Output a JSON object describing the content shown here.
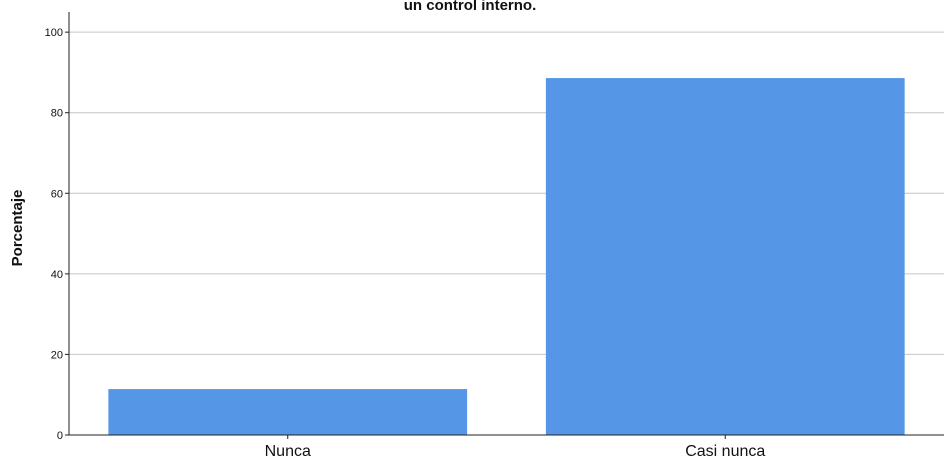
{
  "chart_data": {
    "type": "bar",
    "title": "un control interno.",
    "xlabel": "",
    "ylabel": "Porcentaje",
    "categories": [
      "Nunca",
      "Casi nunca"
    ],
    "values": [
      11.4,
      88.6
    ],
    "ylim": [
      0,
      105
    ],
    "yticks": [
      0,
      20,
      40,
      60,
      80,
      100
    ],
    "grid": true,
    "bar_color": "#5596e6"
  }
}
